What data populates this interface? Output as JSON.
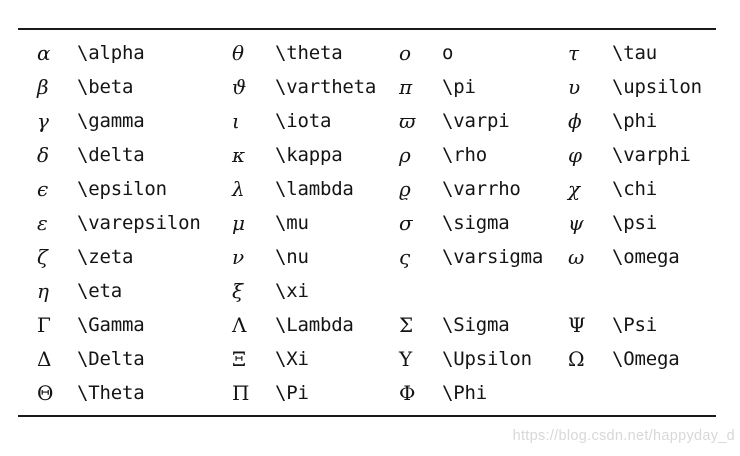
{
  "table": {
    "description": "Greek letters and their LaTeX commands",
    "rows": [
      [
        {
          "sym": "α",
          "cmd": "\\alpha"
        },
        {
          "sym": "θ",
          "cmd": "\\theta"
        },
        {
          "sym": "o",
          "cmd": "o"
        },
        {
          "sym": "τ",
          "cmd": "\\tau"
        }
      ],
      [
        {
          "sym": "β",
          "cmd": "\\beta"
        },
        {
          "sym": "ϑ",
          "cmd": "\\vartheta"
        },
        {
          "sym": "π",
          "cmd": "\\pi"
        },
        {
          "sym": "υ",
          "cmd": "\\upsilon"
        }
      ],
      [
        {
          "sym": "γ",
          "cmd": "\\gamma"
        },
        {
          "sym": "ι",
          "cmd": "\\iota"
        },
        {
          "sym": "ϖ",
          "cmd": "\\varpi"
        },
        {
          "sym": "ϕ",
          "cmd": "\\phi"
        }
      ],
      [
        {
          "sym": "δ",
          "cmd": "\\delta"
        },
        {
          "sym": "κ",
          "cmd": "\\kappa"
        },
        {
          "sym": "ρ",
          "cmd": "\\rho"
        },
        {
          "sym": "φ",
          "cmd": "\\varphi"
        }
      ],
      [
        {
          "sym": "ϵ",
          "cmd": "\\epsilon"
        },
        {
          "sym": "λ",
          "cmd": "\\lambda"
        },
        {
          "sym": "ϱ",
          "cmd": "\\varrho"
        },
        {
          "sym": "χ",
          "cmd": "\\chi"
        }
      ],
      [
        {
          "sym": "ε",
          "cmd": "\\varepsilon"
        },
        {
          "sym": "μ",
          "cmd": "\\mu"
        },
        {
          "sym": "σ",
          "cmd": "\\sigma"
        },
        {
          "sym": "ψ",
          "cmd": "\\psi"
        }
      ],
      [
        {
          "sym": "ζ",
          "cmd": "\\zeta"
        },
        {
          "sym": "ν",
          "cmd": "\\nu"
        },
        {
          "sym": "ς",
          "cmd": "\\varsigma"
        },
        {
          "sym": "ω",
          "cmd": "\\omega"
        }
      ],
      [
        {
          "sym": "η",
          "cmd": "\\eta"
        },
        {
          "sym": "ξ",
          "cmd": "\\xi"
        },
        null,
        null
      ],
      [
        {
          "sym": "Γ",
          "cmd": "\\Gamma"
        },
        {
          "sym": "Λ",
          "cmd": "\\Lambda"
        },
        {
          "sym": "Σ",
          "cmd": "\\Sigma"
        },
        {
          "sym": "Ψ",
          "cmd": "\\Psi"
        }
      ],
      [
        {
          "sym": "Δ",
          "cmd": "\\Delta"
        },
        {
          "sym": "Ξ",
          "cmd": "\\Xi"
        },
        {
          "sym": "Υ",
          "cmd": "\\Upsilon"
        },
        {
          "sym": "Ω",
          "cmd": "\\Omega"
        }
      ],
      [
        {
          "sym": "Θ",
          "cmd": "\\Theta"
        },
        {
          "sym": "Π",
          "cmd": "\\Pi"
        },
        {
          "sym": "Φ",
          "cmd": "\\Phi"
        },
        null
      ]
    ]
  },
  "watermark": {
    "text": "https://blog.csdn.net/happyday_d"
  },
  "colors": {
    "text": "#141414",
    "rule": "#1a1a1a",
    "watermark": "#d8d8d8",
    "background": "#ffffff"
  }
}
